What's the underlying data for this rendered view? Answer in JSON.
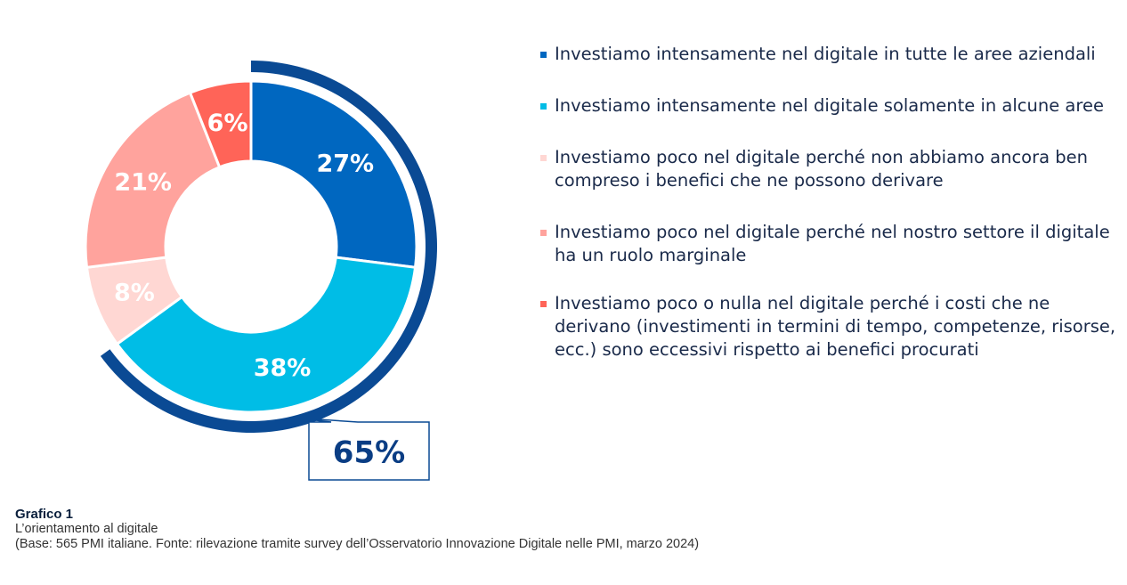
{
  "chart_data": {
    "type": "pie",
    "categories": [
      "Investiamo intensamente nel digitale in tutte le aree aziendali",
      "Investiamo intensamente nel digitale solamente in alcune aree",
      "Investiamo poco nel digitale perché non abbiamo ancora ben compreso i benefici che ne possono derivare",
      "Investiamo poco nel digitale perché nel nostro settore il digitale ha un ruolo marginale",
      "Investiamo poco o nulla nel digitale perché i costi che ne derivano (investimenti in termini di tempo, competenze, risorse, ecc.) sono eccessivi rispetto ai benefici procurati"
    ],
    "values": [
      27,
      38,
      8,
      21,
      6
    ],
    "value_labels": [
      "27%",
      "38%",
      "8%",
      "21%",
      "6%"
    ],
    "legend": [
      "Investiamo intensamente nel digitale in tutte le aree aziendali",
      "Investiamo intensamente nel digitale solamente in alcune aree",
      "Investiamo poco nel digitale perché non abbiamo ancora ben compreso i benefici che ne possono derivare",
      "Investiamo poco nel digitale perché nel nostro settore il digitale ha un ruolo marginale",
      "Investiamo poco o nulla nel digitale perché i costi che ne derivano (investimenti in termini di tempo, competenze, risorse, ecc.) sono eccessivi rispetto ai benefici procurati"
    ],
    "legend_order": [
      0,
      1,
      2,
      3,
      4
    ],
    "legend_placement": "right",
    "colors": [
      "#0067c0",
      "#00bde6",
      "#ffd7d3",
      "#ffa39d",
      "#ff6458"
    ],
    "legend_colors": [
      "#0067c0",
      "#00bde6",
      "#ffd7d3",
      "#ffa39d",
      "#ff6458"
    ],
    "donut": true,
    "highlight": {
      "label": "65%",
      "value": 65,
      "color": "#0a4a94"
    }
  },
  "caption": {
    "label": "Grafico 1",
    "title": "L’orientamento al digitale",
    "source": "(Base: 565 PMI italiane. Fonte: rilevazione tramite survey dell’Osservatorio Innovazione Digitale nelle PMI, marzo 2024)"
  }
}
